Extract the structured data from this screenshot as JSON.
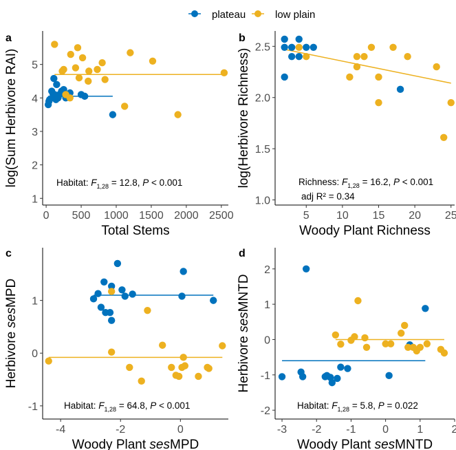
{
  "colors": {
    "plateau": "#0072BD",
    "low_plain": "#EDB120",
    "axis": "#000000",
    "tick_label": "#4D4D4D"
  },
  "legend": [
    {
      "name": "plateau",
      "color": "#0072BD"
    },
    {
      "name": "low plain",
      "color": "#EDB120"
    }
  ],
  "chart_data": [
    {
      "panel": "a",
      "type": "scatter",
      "xlabel": "Total Stems",
      "ylabel": "log(Sum Herbivore RAI)",
      "xlim": [
        -50,
        2600
      ],
      "ylim": [
        0.8,
        6.0
      ],
      "xticks": [
        0,
        500,
        1000,
        1500,
        2000,
        2500
      ],
      "yticks": [
        1,
        2,
        3,
        4,
        5
      ],
      "annotation": {
        "prefix": "Habitat: ",
        "stat": "F",
        "sub": "1,28",
        "mid": " = 12.8, ",
        "p": "P",
        "tail": " < 0.001"
      },
      "annotation2": "",
      "series": [
        {
          "name": "plateau",
          "color": "#0072BD",
          "points": [
            [
              30,
              3.8
            ],
            [
              40,
              3.9
            ],
            [
              50,
              3.95
            ],
            [
              80,
              4.2
            ],
            [
              100,
              4.1
            ],
            [
              110,
              4.58
            ],
            [
              120,
              4.1
            ],
            [
              130,
              4.0
            ],
            [
              140,
              3.95
            ],
            [
              150,
              4.4
            ],
            [
              170,
              4.0
            ],
            [
              190,
              4.1
            ],
            [
              220,
              4.2
            ],
            [
              250,
              4.25
            ],
            [
              280,
              4.0
            ],
            [
              340,
              4.15
            ],
            [
              500,
              4.1
            ],
            [
              550,
              4.05
            ],
            [
              950,
              3.5
            ]
          ],
          "fit": [
            [
              30,
              4.05
            ],
            [
              950,
              4.05
            ]
          ]
        },
        {
          "name": "low plain",
          "color": "#EDB120",
          "points": [
            [
              120,
              5.6
            ],
            [
              230,
              4.8
            ],
            [
              250,
              4.85
            ],
            [
              280,
              4.1
            ],
            [
              340,
              4.0
            ],
            [
              350,
              5.3
            ],
            [
              420,
              4.9
            ],
            [
              450,
              5.5
            ],
            [
              470,
              4.6
            ],
            [
              520,
              5.2
            ],
            [
              600,
              4.5
            ],
            [
              610,
              4.8
            ],
            [
              730,
              4.85
            ],
            [
              800,
              5.05
            ],
            [
              840,
              4.55
            ],
            [
              1120,
              3.75
            ],
            [
              1200,
              5.35
            ],
            [
              1520,
              5.1
            ],
            [
              1880,
              3.5
            ],
            [
              2540,
              4.75
            ]
          ],
          "fit": [
            [
              120,
              4.7
            ],
            [
              2540,
              4.7
            ]
          ]
        }
      ]
    },
    {
      "panel": "b",
      "type": "scatter",
      "xlabel": "Woody Plant Richness",
      "ylabel": "log(Herbivore Richness)",
      "xlim": [
        0.7,
        25.5
      ],
      "ylim": [
        0.95,
        2.65
      ],
      "xticks": [
        5,
        10,
        15,
        20,
        25
      ],
      "yticks": [
        1.0,
        1.5,
        2.0,
        2.5
      ],
      "annotation": {
        "prefix": "Richness: ",
        "stat": "F",
        "sub": "1,28",
        "mid": " = 16.2, ",
        "p": "P",
        "tail": " < 0.001"
      },
      "annotation2": "adj R² = 0.34",
      "series": [
        {
          "name": "plateau",
          "color": "#0072BD",
          "points": [
            [
              2,
              2.57
            ],
            [
              2,
              2.49
            ],
            [
              2,
              2.2
            ],
            [
              3,
              2.49
            ],
            [
              3,
              2.4
            ],
            [
              4,
              2.57
            ],
            [
              4,
              2.4
            ],
            [
              5,
              2.49
            ],
            [
              6,
              2.49
            ],
            [
              18,
              2.08
            ]
          ],
          "fit": null
        },
        {
          "name": "low plain",
          "color": "#EDB120",
          "points": [
            [
              4,
              2.49
            ],
            [
              5,
              2.4
            ],
            [
              11,
              2.2
            ],
            [
              12,
              2.4
            ],
            [
              12,
              2.3
            ],
            [
              13,
              2.4
            ],
            [
              14,
              2.49
            ],
            [
              15,
              2.2
            ],
            [
              15,
              1.95
            ],
            [
              17,
              2.49
            ],
            [
              19,
              2.4
            ],
            [
              23,
              2.3
            ],
            [
              24,
              1.61
            ],
            [
              25,
              1.95
            ]
          ],
          "fit": null
        }
      ],
      "fit_all": {
        "color": "#EDB120",
        "line": [
          [
            2,
            2.47
          ],
          [
            25,
            2.14
          ]
        ]
      }
    },
    {
      "panel": "c",
      "type": "scatter",
      "xlabel": "Woody Plant sesMPD",
      "xlabel_italic": "ses",
      "ylabel": "Herbivore sesMPD",
      "ylabel_italic": "ses",
      "xlim": [
        -4.6,
        1.6
      ],
      "ylim": [
        -1.25,
        2.0
      ],
      "xticks": [
        -4,
        -2,
        0
      ],
      "yticks": [
        -1,
        0,
        1
      ],
      "annotation": {
        "prefix": "Habitat: ",
        "stat": "F",
        "sub": "1,28",
        "mid": " = 64.8, ",
        "p": "P",
        "tail": " < 0.001"
      },
      "annotation2": "",
      "series": [
        {
          "name": "plateau",
          "color": "#0072BD",
          "points": [
            [
              -2.9,
              1.03
            ],
            [
              -2.75,
              1.13
            ],
            [
              -2.65,
              0.87
            ],
            [
              -2.55,
              1.35
            ],
            [
              -2.5,
              0.77
            ],
            [
              -2.35,
              0.77
            ],
            [
              -2.3,
              0.62
            ],
            [
              -2.3,
              1.27
            ],
            [
              -2.1,
              1.7
            ],
            [
              -1.95,
              1.2
            ],
            [
              -1.85,
              1.08
            ],
            [
              -1.6,
              1.12
            ],
            [
              0.05,
              1.08
            ],
            [
              0.1,
              1.55
            ],
            [
              1.1,
              1.0
            ]
          ],
          "fit": [
            [
              -2.9,
              1.1
            ],
            [
              1.1,
              1.1
            ]
          ]
        },
        {
          "name": "low plain",
          "color": "#EDB120",
          "points": [
            [
              -4.4,
              -0.15
            ],
            [
              -2.3,
              1.17
            ],
            [
              -2.3,
              0.02
            ],
            [
              -1.7,
              -0.27
            ],
            [
              -1.3,
              -0.53
            ],
            [
              -1.1,
              0.81
            ],
            [
              -0.6,
              0.15
            ],
            [
              -0.3,
              -0.27
            ],
            [
              -0.15,
              -0.42
            ],
            [
              -0.05,
              -0.44
            ],
            [
              0.05,
              -0.27
            ],
            [
              0.1,
              -0.08
            ],
            [
              0.15,
              -0.24
            ],
            [
              0.6,
              -0.44
            ],
            [
              0.9,
              -0.27
            ],
            [
              0.95,
              -0.29
            ],
            [
              1.4,
              0.14
            ]
          ],
          "fit": [
            [
              -4.4,
              -0.08
            ],
            [
              1.4,
              -0.08
            ]
          ]
        }
      ]
    },
    {
      "panel": "d",
      "type": "scatter",
      "xlabel": "Woody Plant sesMNTD",
      "xlabel_italic": "ses",
      "ylabel": "Herbivore sesMNTD",
      "ylabel_italic": "ses",
      "xlim": [
        -3.2,
        2.0
      ],
      "ylim": [
        -2.25,
        2.6
      ],
      "xticks": [
        -3,
        -2,
        -1,
        0,
        1,
        2
      ],
      "yticks": [
        -2,
        -1,
        0,
        1,
        2
      ],
      "annotation": {
        "prefix": "Habitat: ",
        "stat": "F",
        "sub": "1,28",
        "mid": " = 5.8, ",
        "p": "P",
        "tail": " = 0.022"
      },
      "annotation2": "",
      "series": [
        {
          "name": "plateau",
          "color": "#0072BD",
          "points": [
            [
              -3.0,
              -1.05
            ],
            [
              -2.45,
              -0.92
            ],
            [
              -2.4,
              -1.05
            ],
            [
              -2.3,
              2.0
            ],
            [
              -1.75,
              -1.05
            ],
            [
              -1.7,
              -1.02
            ],
            [
              -1.6,
              -1.07
            ],
            [
              -1.55,
              -1.22
            ],
            [
              -1.4,
              -1.1
            ],
            [
              -1.3,
              -0.78
            ],
            [
              -1.1,
              -0.82
            ],
            [
              0.1,
              -1.02
            ],
            [
              0.7,
              -0.15
            ],
            [
              1.15,
              0.88
            ]
          ],
          "fit": [
            [
              -3.0,
              -0.6
            ],
            [
              1.15,
              -0.6
            ]
          ]
        },
        {
          "name": "low plain",
          "color": "#EDB120",
          "points": [
            [
              -1.45,
              0.13
            ],
            [
              -1.3,
              -0.13
            ],
            [
              -1.0,
              -0.02
            ],
            [
              -0.9,
              0.08
            ],
            [
              -0.8,
              1.1
            ],
            [
              -0.6,
              0.05
            ],
            [
              -0.55,
              -0.22
            ],
            [
              0.0,
              -0.12
            ],
            [
              0.15,
              -0.12
            ],
            [
              0.45,
              0.18
            ],
            [
              0.55,
              0.4
            ],
            [
              0.65,
              -0.22
            ],
            [
              0.8,
              -0.22
            ],
            [
              0.9,
              -0.32
            ],
            [
              1.0,
              -0.22
            ],
            [
              1.2,
              -0.12
            ],
            [
              1.6,
              -0.28
            ],
            [
              1.7,
              -0.38
            ]
          ],
          "fit": [
            [
              -1.45,
              0.0
            ],
            [
              1.7,
              0.0
            ]
          ]
        }
      ]
    }
  ]
}
